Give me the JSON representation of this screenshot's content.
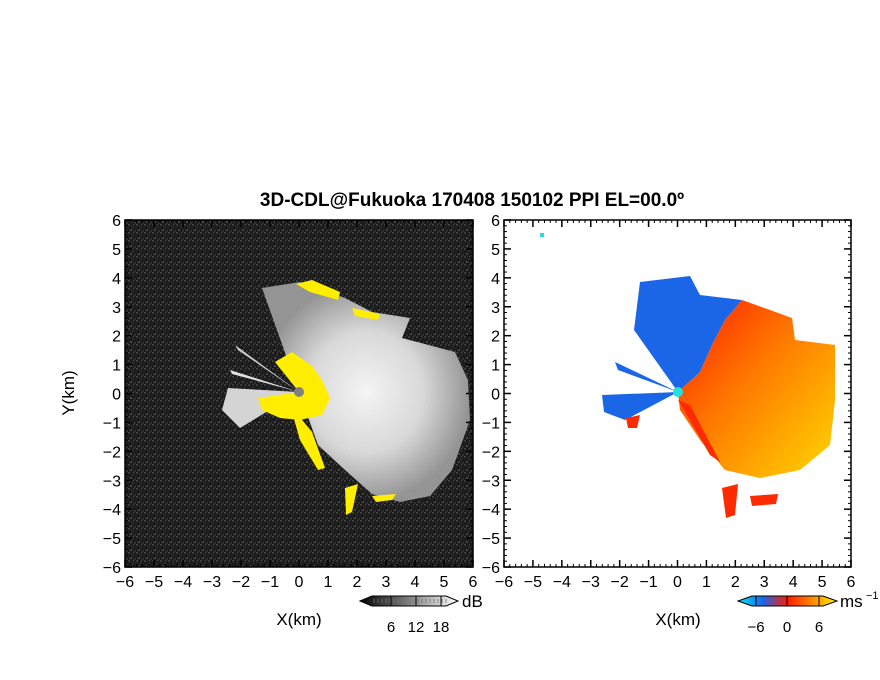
{
  "chart_data": [
    {
      "type": "heatmap",
      "panel": "reflectivity",
      "title": "3D-CDL@Fukuoka 170408 150102 PPI EL=00.0º",
      "xlabel": "X(km)",
      "ylabel": "Y(km)",
      "xlim": [
        -6,
        6
      ],
      "ylim": [
        -6,
        6
      ],
      "x_ticks": [
        "−6",
        "−5",
        "−4",
        "−3",
        "−2",
        "−1",
        "0",
        "1",
        "2",
        "3",
        "4",
        "5",
        "6"
      ],
      "y_ticks": [
        "6",
        "5",
        "4",
        "3",
        "2",
        "1",
        "0",
        "−1",
        "−2",
        "−3",
        "−4",
        "−5",
        "−6"
      ],
      "grid": false,
      "colorbar": {
        "unit": "dB",
        "tick_labels": [
          "6",
          "12",
          "18"
        ],
        "colormap": "grayscale"
      },
      "colors": {
        "background": "#202020",
        "echo": "#d8d8d8",
        "saturated": "#ffee00",
        "radar_site": "#808080"
      }
    },
    {
      "type": "heatmap",
      "panel": "doppler-velocity",
      "xlabel": "X(km)",
      "xlim": [
        -6,
        6
      ],
      "ylim": [
        -6,
        6
      ],
      "x_ticks": [
        "−6",
        "−5",
        "−4",
        "−3",
        "−2",
        "−1",
        "0",
        "1",
        "2",
        "3",
        "4",
        "5",
        "6"
      ],
      "y_ticks": [
        "6",
        "5",
        "4",
        "3",
        "2",
        "1",
        "0",
        "−1",
        "−2",
        "−3",
        "−4",
        "−5",
        "−6"
      ],
      "grid": false,
      "colorbar": {
        "unit": "ms",
        "unit_exponent": "−1",
        "tick_labels": [
          "−6",
          "0",
          "6"
        ],
        "colormap": "blue-red-yellow"
      },
      "colors": {
        "toward": "#1a66e6",
        "away": "#ff2a00",
        "far_away": "#ffd000",
        "radar_site": "#20e0e0"
      }
    }
  ]
}
